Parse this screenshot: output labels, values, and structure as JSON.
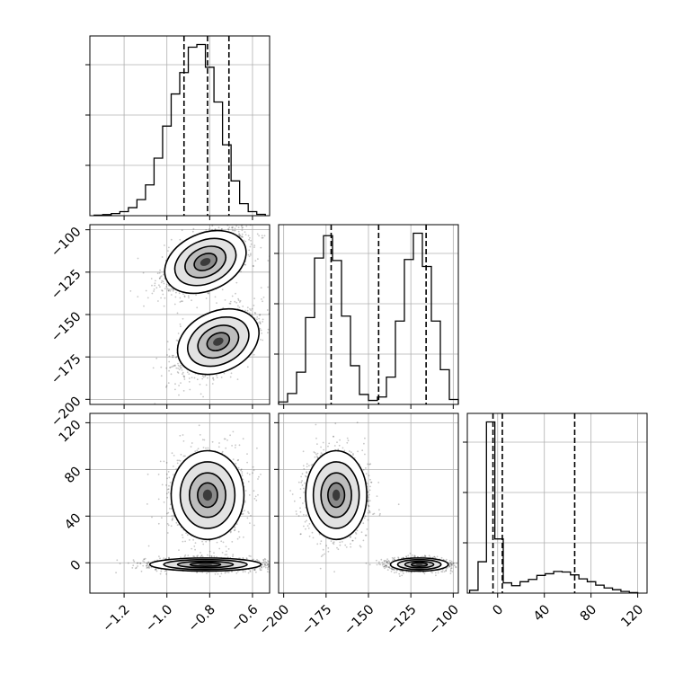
{
  "chart_data": {
    "type": "corner",
    "grid": true,
    "variables": [
      {
        "label": "",
        "range": [
          -1.36,
          -0.52
        ],
        "ticks": [
          -1.2,
          -1.0,
          -0.8,
          -0.6
        ],
        "tick_labels": [
          "−1.2",
          "−1.0",
          "−0.8",
          "−0.6"
        ],
        "quantiles": [
          -0.92,
          -0.81,
          -0.71
        ]
      },
      {
        "label": "",
        "range": [
          -203,
          -97
        ],
        "ticks": [
          -200,
          -175,
          -150,
          -125,
          -100
        ],
        "tick_labels": [
          "−200",
          "−175",
          "−150",
          "−125",
          "−100"
        ],
        "quantiles": [
          -172,
          -144,
          -116
        ]
      },
      {
        "label": "",
        "range": [
          -26,
          128
        ],
        "ticks": [
          0,
          40,
          80,
          120
        ],
        "tick_labels": [
          "0",
          "40",
          "80",
          "120"
        ],
        "quantiles": [
          -4,
          4,
          66
        ]
      }
    ],
    "histograms": [
      {
        "variable": 0,
        "edges": [
          -1.34,
          -1.3,
          -1.26,
          -1.22,
          -1.18,
          -1.14,
          -1.1,
          -1.06,
          -1.02,
          -0.98,
          -0.94,
          -0.9,
          -0.86,
          -0.82,
          -0.78,
          -0.74,
          -0.7,
          -0.66,
          -0.62,
          -0.58,
          -0.54
        ],
        "counts": [
          2,
          4,
          8,
          15,
          30,
          60,
          115,
          215,
          335,
          455,
          535,
          630,
          640,
          555,
          425,
          265,
          130,
          45,
          15,
          5
        ]
      },
      {
        "variable": 1,
        "edges": [
          -203,
          -197.7,
          -192.4,
          -187.1,
          -181.8,
          -176.5,
          -171.2,
          -165.9,
          -160.6,
          -155.3,
          -150,
          -144.7,
          -139.4,
          -134.1,
          -128.8,
          -123.5,
          -118.2,
          -112.9,
          -107.6,
          -102.3,
          -97
        ],
        "counts": [
          5,
          22,
          65,
          175,
          295,
          340,
          290,
          178,
          78,
          20,
          8,
          15,
          55,
          168,
          292,
          345,
          278,
          168,
          70,
          10
        ]
      },
      {
        "variable": 2,
        "edges": [
          -24,
          -16.8,
          -9.6,
          -2.4,
          4.8,
          12,
          19.2,
          26.4,
          33.6,
          40.8,
          48,
          55.2,
          62.4,
          69.6,
          76.8,
          84,
          91.2,
          98.4,
          105.6,
          112.8,
          120
        ],
        "counts": [
          5,
          55,
          300,
          95,
          18,
          13,
          20,
          24,
          31,
          34,
          38,
          37,
          32,
          25,
          20,
          14,
          9,
          6,
          3,
          1
        ]
      }
    ],
    "scatter_panels": [
      {
        "x_variable": 0,
        "y_variable": 1,
        "clusters": [
          {
            "cx": -0.82,
            "cy": -119,
            "sx": 0.1,
            "sy": 9.5,
            "rho": 0.6,
            "n": 1500
          },
          {
            "cx": -0.76,
            "cy": -166,
            "sx": 0.1,
            "sy": 10,
            "rho": 0.6,
            "n": 1500
          }
        ]
      },
      {
        "x_variable": 0,
        "y_variable": 2,
        "clusters": [
          {
            "cx": -0.81,
            "cy": 58,
            "sx": 0.085,
            "sy": 19,
            "rho": 0,
            "n": 1500
          },
          {
            "cx": -0.82,
            "cy": -1.5,
            "sx": 0.13,
            "sy": 2.8,
            "rho": 0,
            "n": 1500
          }
        ]
      },
      {
        "x_variable": 1,
        "y_variable": 2,
        "clusters": [
          {
            "cx": -169,
            "cy": 58,
            "sx": 9,
            "sy": 19,
            "rho": 0,
            "n": 1500
          },
          {
            "cx": -120,
            "cy": -1.5,
            "sx": 8.5,
            "sy": 2.8,
            "rho": 0,
            "n": 1500
          }
        ]
      }
    ]
  }
}
